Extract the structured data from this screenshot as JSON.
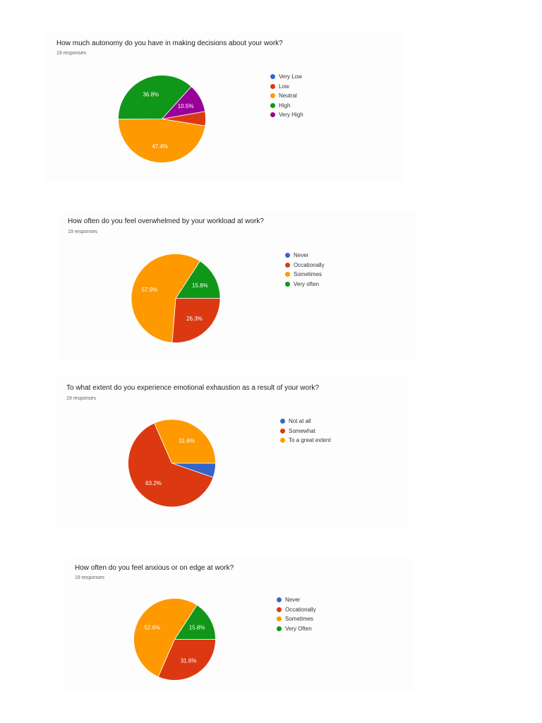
{
  "colors": {
    "blue": "#3366cc",
    "red": "#dc3912",
    "orange": "#ff9900",
    "green": "#109618",
    "purple": "#990099"
  },
  "chart_data": [
    {
      "type": "pie",
      "title": "How much autonomy do you have in making decisions about your work?",
      "subtitle": "19 responses",
      "categories": [
        "Very Low",
        "Low",
        "Neutral",
        "High",
        "Very High"
      ],
      "values": [
        0,
        5.3,
        47.4,
        36.8,
        10.5
      ],
      "slice_labels": [
        "",
        "",
        "47.4%",
        "36.8%",
        "10.5%"
      ],
      "colors": [
        "#3366cc",
        "#dc3912",
        "#ff9900",
        "#109618",
        "#990099"
      ],
      "legend_position": "right"
    },
    {
      "type": "pie",
      "title": "How often do you feel overwhelmed by your workload at work?",
      "subtitle": "19 responses",
      "categories": [
        "Never",
        "Occationally",
        "Sometimes",
        "Very often"
      ],
      "values": [
        0,
        26.3,
        57.9,
        15.8
      ],
      "slice_labels": [
        "",
        "26.3%",
        "57.9%",
        "15.8%"
      ],
      "colors": [
        "#3366cc",
        "#dc3912",
        "#ff9900",
        "#109618"
      ],
      "legend_position": "right"
    },
    {
      "type": "pie",
      "title": "To what extent do you experience emotional exhaustion as a result of your work?",
      "subtitle": "19 responses",
      "categories": [
        "Not at all",
        "Somewhat",
        "To a great extent"
      ],
      "values": [
        5.3,
        63.2,
        31.6
      ],
      "slice_labels": [
        "",
        "63.2%",
        "31.6%"
      ],
      "colors": [
        "#3366cc",
        "#dc3912",
        "#ff9900"
      ],
      "legend_position": "right"
    },
    {
      "type": "pie",
      "title": "How often do you feel anxious or on edge at work?",
      "subtitle": "19 responses",
      "categories": [
        "Never",
        "Occationally",
        "Sometimes",
        "Very Often"
      ],
      "values": [
        0,
        31.6,
        52.6,
        15.8
      ],
      "slice_labels": [
        "",
        "31.6%",
        "52.6%",
        "15.8%"
      ],
      "colors": [
        "#3366cc",
        "#dc3912",
        "#ff9900",
        "#109618"
      ],
      "legend_position": "right"
    }
  ]
}
